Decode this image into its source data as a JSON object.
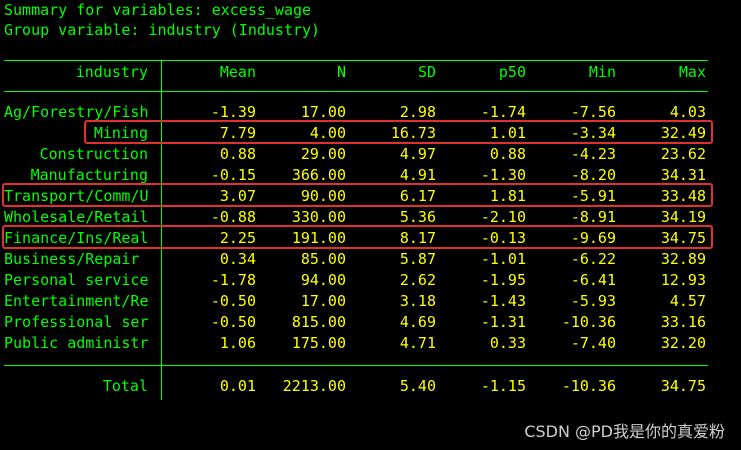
{
  "header": {
    "line1": "Summary for variables: excess_wage",
    "line2": "Group variable: industry (Industry)"
  },
  "table": {
    "columns": [
      "industry",
      "Mean",
      "N",
      "SD",
      "p50",
      "Min",
      "Max"
    ],
    "rows": [
      {
        "label": "Ag/Forestry/Fish",
        "align": "left",
        "values": [
          "-1.39",
          "17.00",
          "2.98",
          "-1.74",
          "-7.56",
          "4.03"
        ]
      },
      {
        "label": "Mining",
        "align": "right",
        "values": [
          "7.79",
          "4.00",
          "16.73",
          "1.01",
          "-3.34",
          "32.49"
        ]
      },
      {
        "label": "Construction",
        "align": "right",
        "values": [
          "0.88",
          "29.00",
          "4.97",
          "0.88",
          "-4.23",
          "23.62"
        ]
      },
      {
        "label": "Manufacturing",
        "align": "right",
        "values": [
          "-0.15",
          "366.00",
          "4.91",
          "-1.30",
          "-8.20",
          "34.31"
        ]
      },
      {
        "label": "Transport/Comm/U",
        "align": "left",
        "values": [
          "3.07",
          "90.00",
          "6.17",
          "1.81",
          "-5.91",
          "33.48"
        ]
      },
      {
        "label": "Wholesale/Retail",
        "align": "left",
        "values": [
          "-0.88",
          "330.00",
          "5.36",
          "-2.10",
          "-8.91",
          "34.19"
        ]
      },
      {
        "label": "Finance/Ins/Real",
        "align": "left",
        "values": [
          "2.25",
          "191.00",
          "8.17",
          "-0.13",
          "-9.69",
          "34.75"
        ]
      },
      {
        "label": "Business/Repair",
        "align": "left",
        "values": [
          "0.34",
          "85.00",
          "5.87",
          "-1.01",
          "-6.22",
          "32.89"
        ]
      },
      {
        "label": "Personal service",
        "align": "left",
        "values": [
          "-1.78",
          "94.00",
          "2.62",
          "-1.95",
          "-6.41",
          "12.93"
        ]
      },
      {
        "label": "Entertainment/Re",
        "align": "left",
        "values": [
          "-0.50",
          "17.00",
          "3.18",
          "-1.43",
          "-5.93",
          "4.57"
        ]
      },
      {
        "label": "Professional ser",
        "align": "left",
        "values": [
          "-0.50",
          "815.00",
          "4.69",
          "-1.31",
          "-10.36",
          "33.16"
        ]
      },
      {
        "label": "Public administr",
        "align": "left",
        "values": [
          "1.06",
          "175.00",
          "4.71",
          "0.33",
          "-7.40",
          "32.20"
        ]
      }
    ],
    "total": {
      "label": "Total",
      "values": [
        "0.01",
        "2213.00",
        "5.40",
        "-1.15",
        "-10.36",
        "34.75"
      ]
    }
  },
  "highlighted_rows": [
    "Mining",
    "Transport/Comm/U",
    "Finance/Ins/Real"
  ],
  "colors": {
    "background": "#000000",
    "label_green": "#00ff00",
    "value_yellow": "#ffff00",
    "highlight_red": "#e03030"
  },
  "watermark": "CSDN @PD我是你的真爱粉"
}
